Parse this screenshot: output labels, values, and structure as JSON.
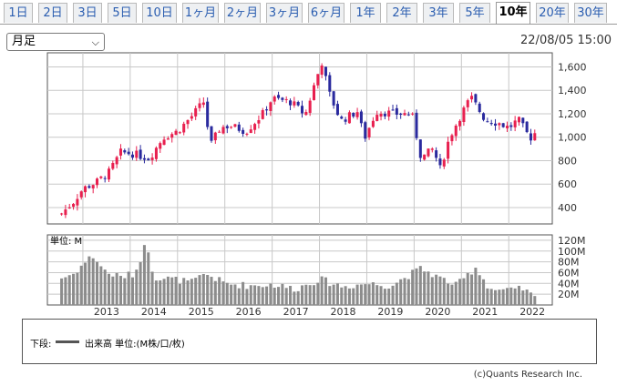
{
  "tabs": [
    "1日",
    "2日",
    "3日",
    "5日",
    "10日",
    "1ヶ月",
    "2ヶ月",
    "3ヶ月",
    "6ヶ月",
    "1年",
    "2年",
    "3年",
    "5年",
    "10年",
    "20年",
    "30年"
  ],
  "active_tab": "10年",
  "period_select": "月足",
  "timestamp": "22/08/05 15:00",
  "legend": {
    "label": "下段:",
    "series": "出来高 単位:(M株/口/枚)"
  },
  "copyright": "(c)Quants Research Inc.",
  "colors": {
    "up": "#e8204f",
    "down": "#2a2a9e",
    "volume": "#8c8c8c",
    "grid": "#c8c8c8"
  },
  "chart_data": [
    {
      "type": "candlestick",
      "title": "",
      "ylim": [
        260,
        1720
      ],
      "y_ticks": [
        "400",
        "600",
        "800",
        "1,000",
        "1,200",
        "1,400",
        "1,600"
      ],
      "x_tick_labels": [
        "2013",
        "2014",
        "2015",
        "2016",
        "2017",
        "2018",
        "2019",
        "2020",
        "2021",
        "2022"
      ],
      "grid": true,
      "series_anchors": [
        {
          "t": 2012.55,
          "close": 350
        },
        {
          "t": 2012.8,
          "close": 450
        },
        {
          "t": 2013.0,
          "close": 560
        },
        {
          "t": 2013.3,
          "close": 620
        },
        {
          "t": 2013.55,
          "close": 700
        },
        {
          "t": 2013.8,
          "close": 870
        },
        {
          "t": 2014.05,
          "close": 860
        },
        {
          "t": 2014.4,
          "close": 820
        },
        {
          "t": 2014.7,
          "close": 1000
        },
        {
          "t": 2015.0,
          "close": 1050
        },
        {
          "t": 2015.3,
          "close": 1180
        },
        {
          "t": 2015.55,
          "close": 1300
        },
        {
          "t": 2015.7,
          "close": 930
        },
        {
          "t": 2015.9,
          "close": 1080
        },
        {
          "t": 2016.1,
          "close": 1100
        },
        {
          "t": 2016.45,
          "close": 1050
        },
        {
          "t": 2016.8,
          "close": 1200
        },
        {
          "t": 2017.0,
          "close": 1330
        },
        {
          "t": 2017.4,
          "close": 1300
        },
        {
          "t": 2017.7,
          "close": 1190
        },
        {
          "t": 2017.9,
          "close": 1460
        },
        {
          "t": 2018.05,
          "close": 1640
        },
        {
          "t": 2018.2,
          "close": 1380
        },
        {
          "t": 2018.45,
          "close": 1140
        },
        {
          "t": 2018.8,
          "close": 1220
        },
        {
          "t": 2018.95,
          "close": 990
        },
        {
          "t": 2019.2,
          "close": 1220
        },
        {
          "t": 2019.6,
          "close": 1200
        },
        {
          "t": 2019.95,
          "close": 1200
        },
        {
          "t": 2020.15,
          "close": 820
        },
        {
          "t": 2020.4,
          "close": 900
        },
        {
          "t": 2020.55,
          "close": 730
        },
        {
          "t": 2020.75,
          "close": 1000
        },
        {
          "t": 2021.0,
          "close": 1200
        },
        {
          "t": 2021.2,
          "close": 1340
        },
        {
          "t": 2021.5,
          "close": 1150
        },
        {
          "t": 2021.8,
          "close": 1120
        },
        {
          "t": 2022.0,
          "close": 1080
        },
        {
          "t": 2022.2,
          "close": 1150
        },
        {
          "t": 2022.45,
          "close": 990
        },
        {
          "t": 2022.6,
          "close": 1060
        }
      ]
    },
    {
      "type": "bar",
      "unit_label": "単位: M",
      "ylim": [
        0,
        130
      ],
      "y_ticks": [
        "20M",
        "40M",
        "60M",
        "80M",
        "100M",
        "120M"
      ],
      "volume_anchors": [
        {
          "t": 2012.55,
          "v": 50
        },
        {
          "t": 2012.8,
          "v": 58
        },
        {
          "t": 2013.2,
          "v": 92
        },
        {
          "t": 2013.5,
          "v": 60
        },
        {
          "t": 2013.8,
          "v": 52
        },
        {
          "t": 2014.1,
          "v": 58
        },
        {
          "t": 2014.35,
          "v": 118
        },
        {
          "t": 2014.5,
          "v": 52
        },
        {
          "t": 2014.9,
          "v": 48
        },
        {
          "t": 2015.3,
          "v": 42
        },
        {
          "t": 2015.6,
          "v": 58
        },
        {
          "t": 2016.0,
          "v": 40
        },
        {
          "t": 2016.5,
          "v": 36
        },
        {
          "t": 2017.0,
          "v": 38
        },
        {
          "t": 2017.5,
          "v": 30
        },
        {
          "t": 2018.0,
          "v": 48
        },
        {
          "t": 2018.5,
          "v": 34
        },
        {
          "t": 2019.0,
          "v": 40
        },
        {
          "t": 2019.5,
          "v": 36
        },
        {
          "t": 2020.15,
          "v": 68
        },
        {
          "t": 2020.5,
          "v": 52
        },
        {
          "t": 2020.9,
          "v": 36
        },
        {
          "t": 2021.3,
          "v": 70
        },
        {
          "t": 2021.6,
          "v": 30
        },
        {
          "t": 2022.0,
          "v": 26
        },
        {
          "t": 2022.3,
          "v": 30
        },
        {
          "t": 2022.6,
          "v": 10
        }
      ]
    }
  ]
}
